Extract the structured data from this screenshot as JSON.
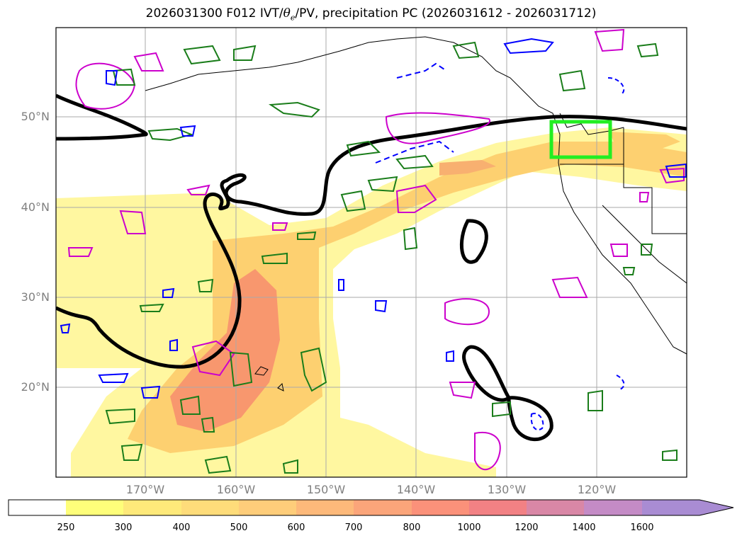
{
  "title_prefix": "2026031300 F012 IVT/",
  "title_theta": "θ",
  "title_sub": "e",
  "title_suffix": "/PV, precipitation PC (2026031612 - 2026031712)",
  "lat_labels": [
    "50°N",
    "40°N",
    "30°N",
    "20°N"
  ],
  "lon_labels": [
    "170°W",
    "160°W",
    "150°W",
    "140°W",
    "130°W",
    "120°W"
  ],
  "colorbar": {
    "ticks": [
      "250",
      "300",
      "400",
      "500",
      "600",
      "700",
      "800",
      "1000",
      "1200",
      "1400",
      "1600"
    ],
    "colors": [
      "#ffffff",
      "#fefe7a",
      "#fee97a",
      "#fedc7a",
      "#fecd7a",
      "#fdb97a",
      "#fba57a",
      "#fb917a",
      "#f28184",
      "#d987a6",
      "#c48bc6",
      "#a98cd3"
    ]
  },
  "colors": {
    "ivt_low": "#fff7a0",
    "ivt_mid": "#fdd070",
    "ivt_high": "#f7906e",
    "pv_contour": "#000000",
    "theta_e": "#cc00cc",
    "precip_pc": "#1a7d1a",
    "blue_contour": "#0000ff",
    "highlight_box": "#22ee22"
  }
}
